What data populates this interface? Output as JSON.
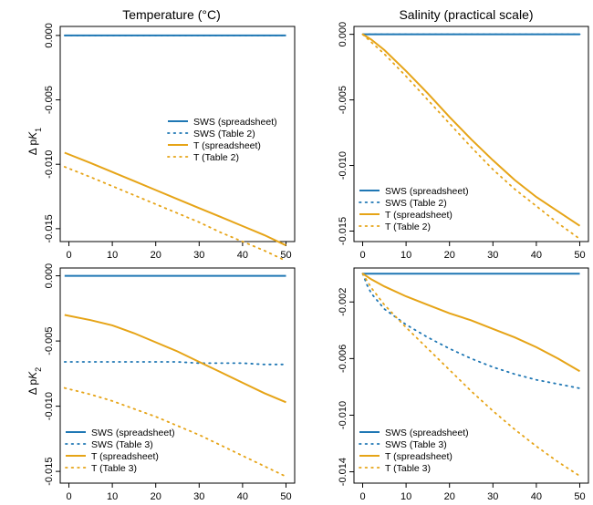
{
  "figure": {
    "column_titles": [
      "Temperature (°C)",
      "Salinity (practical scale)"
    ],
    "row_ylabels": [
      {
        "prefix": "Δ p",
        "base": "K",
        "sub": "1"
      },
      {
        "prefix": "Δ p",
        "base": "K",
        "sub": "2"
      }
    ]
  },
  "colors": {
    "SWS": "#1f77b4",
    "T": "#e6a417"
  },
  "chart_data": [
    {
      "type": "line",
      "row": 0,
      "col": 0,
      "xlim": [
        -2,
        52
      ],
      "ylim": [
        -0.016,
        0.0007
      ],
      "x_ticks": [
        0,
        10,
        20,
        30,
        40,
        50
      ],
      "y_ticks": [
        0.0,
        -0.005,
        -0.01,
        -0.015
      ],
      "y_tick_labels": [
        "0.000",
        "-0.005",
        "-0.010",
        "-0.015"
      ],
      "legend_position": "right-middle",
      "x": [
        -1,
        5,
        10,
        15,
        20,
        25,
        30,
        35,
        40,
        45,
        50
      ],
      "series": [
        {
          "name": "SWS (spreadsheet)",
          "color_key": "SWS",
          "style": "solid",
          "y": [
            0,
            0,
            0,
            0,
            0,
            0,
            0,
            0,
            0,
            0,
            0
          ]
        },
        {
          "name": "SWS (Table 2)",
          "color_key": "SWS",
          "style": "dotted",
          "y": [
            0,
            0,
            0,
            0,
            0,
            0,
            0,
            0,
            0,
            0,
            0
          ]
        },
        {
          "name": "T (spreadsheet)",
          "color_key": "T",
          "style": "solid",
          "y": [
            -0.0091,
            -0.0099,
            -0.0106,
            -0.0113,
            -0.012,
            -0.0127,
            -0.0134,
            -0.0141,
            -0.0148,
            -0.0155,
            -0.0163
          ]
        },
        {
          "name": "T (Table 2)",
          "color_key": "T",
          "style": "dotted",
          "y": [
            -0.0102,
            -0.011,
            -0.0117,
            -0.0124,
            -0.0131,
            -0.0138,
            -0.0145,
            -0.0153,
            -0.016,
            -0.0167,
            -0.0175
          ]
        }
      ]
    },
    {
      "type": "line",
      "row": 0,
      "col": 1,
      "xlim": [
        -2,
        52
      ],
      "ylim": [
        -0.0158,
        0.0006
      ],
      "x_ticks": [
        0,
        10,
        20,
        30,
        40,
        50
      ],
      "y_ticks": [
        0.0,
        -0.005,
        -0.01,
        -0.015
      ],
      "y_tick_labels": [
        "0.000",
        "-0.005",
        "-0.010",
        "-0.015"
      ],
      "legend_position": "bottom-left",
      "x": [
        0,
        1,
        2,
        5,
        10,
        15,
        20,
        25,
        30,
        35,
        40,
        45,
        50
      ],
      "series": [
        {
          "name": "SWS (spreadsheet)",
          "color_key": "SWS",
          "style": "solid",
          "y": [
            0,
            0,
            0,
            0,
            0,
            0,
            0,
            0,
            0,
            0,
            0,
            0,
            0
          ]
        },
        {
          "name": "SWS (Table 2)",
          "color_key": "SWS",
          "style": "dotted",
          "y": [
            0,
            0,
            0,
            0,
            0,
            0,
            0,
            0,
            0,
            0,
            0,
            0,
            0
          ]
        },
        {
          "name": "T (spreadsheet)",
          "color_key": "T",
          "style": "solid",
          "y": [
            0,
            -0.0002,
            -0.0004,
            -0.0012,
            -0.0028,
            -0.0045,
            -0.0063,
            -0.008,
            -0.0096,
            -0.0111,
            -0.0124,
            -0.0135,
            -0.0146
          ]
        },
        {
          "name": "T (Table 2)",
          "color_key": "T",
          "style": "dotted",
          "y": [
            0,
            -0.0003,
            -0.0006,
            -0.0015,
            -0.0032,
            -0.005,
            -0.0068,
            -0.0086,
            -0.0103,
            -0.0118,
            -0.0131,
            -0.0144,
            -0.0156
          ]
        }
      ]
    },
    {
      "type": "line",
      "row": 1,
      "col": 0,
      "xlim": [
        -2,
        52
      ],
      "ylim": [
        -0.0159,
        0.0006
      ],
      "x_ticks": [
        0,
        10,
        20,
        30,
        40,
        50
      ],
      "y_ticks": [
        0.0,
        -0.005,
        -0.01,
        -0.015
      ],
      "y_tick_labels": [
        "0.000",
        "-0.005",
        "-0.010",
        "-0.015"
      ],
      "legend_position": "bottom-left",
      "x": [
        -1,
        5,
        10,
        15,
        20,
        25,
        30,
        35,
        40,
        45,
        50
      ],
      "series": [
        {
          "name": "SWS (spreadsheet)",
          "color_key": "SWS",
          "style": "solid",
          "y": [
            0,
            0,
            0,
            0,
            0,
            0,
            0,
            0,
            0,
            0,
            0
          ]
        },
        {
          "name": "SWS (Table 3)",
          "color_key": "SWS",
          "style": "dotted",
          "y": [
            -0.0066,
            -0.0066,
            -0.0066,
            -0.0066,
            -0.0066,
            -0.0066,
            -0.0067,
            -0.0067,
            -0.0067,
            -0.0068,
            -0.0068
          ]
        },
        {
          "name": "T (spreadsheet)",
          "color_key": "T",
          "style": "solid",
          "y": [
            -0.003,
            -0.0034,
            -0.0038,
            -0.0044,
            -0.0051,
            -0.0058,
            -0.0066,
            -0.0074,
            -0.0082,
            -0.009,
            -0.0097
          ]
        },
        {
          "name": "T (Table 3)",
          "color_key": "T",
          "style": "dotted",
          "y": [
            -0.0086,
            -0.0091,
            -0.0096,
            -0.0102,
            -0.0108,
            -0.0115,
            -0.0122,
            -0.013,
            -0.0138,
            -0.0146,
            -0.0154
          ]
        }
      ]
    },
    {
      "type": "line",
      "row": 1,
      "col": 1,
      "xlim": [
        -2,
        52
      ],
      "ylim": [
        -0.0148,
        0.0004
      ],
      "x_ticks": [
        0,
        10,
        20,
        30,
        40,
        50
      ],
      "y_ticks": [
        -0.002,
        -0.006,
        -0.01,
        -0.014
      ],
      "y_tick_labels": [
        "-0.002",
        "-0.006",
        "-0.010",
        "-0.014"
      ],
      "legend_position": "bottom-left",
      "x": [
        0,
        1,
        2,
        5,
        10,
        15,
        20,
        25,
        30,
        35,
        40,
        45,
        50
      ],
      "series": [
        {
          "name": "SWS (spreadsheet)",
          "color_key": "SWS",
          "style": "solid",
          "y": [
            0,
            0,
            0,
            0,
            0,
            0,
            0,
            0,
            0,
            0,
            0,
            0,
            0
          ]
        },
        {
          "name": "SWS (Table 3)",
          "color_key": "SWS",
          "style": "dotted",
          "y": [
            0,
            -0.0008,
            -0.0014,
            -0.0025,
            -0.0036,
            -0.0045,
            -0.0053,
            -0.006,
            -0.0066,
            -0.0071,
            -0.0075,
            -0.0078,
            -0.0081
          ]
        },
        {
          "name": "T (spreadsheet)",
          "color_key": "T",
          "style": "solid",
          "y": [
            0,
            -0.0002,
            -0.0004,
            -0.0009,
            -0.0016,
            -0.0022,
            -0.0028,
            -0.0033,
            -0.0039,
            -0.0045,
            -0.0052,
            -0.006,
            -0.0069
          ]
        },
        {
          "name": "T (Table 3)",
          "color_key": "T",
          "style": "dotted",
          "y": [
            0,
            -0.0005,
            -0.001,
            -0.0022,
            -0.0038,
            -0.0053,
            -0.0068,
            -0.0083,
            -0.0097,
            -0.011,
            -0.0122,
            -0.0133,
            -0.0143
          ]
        }
      ]
    }
  ]
}
